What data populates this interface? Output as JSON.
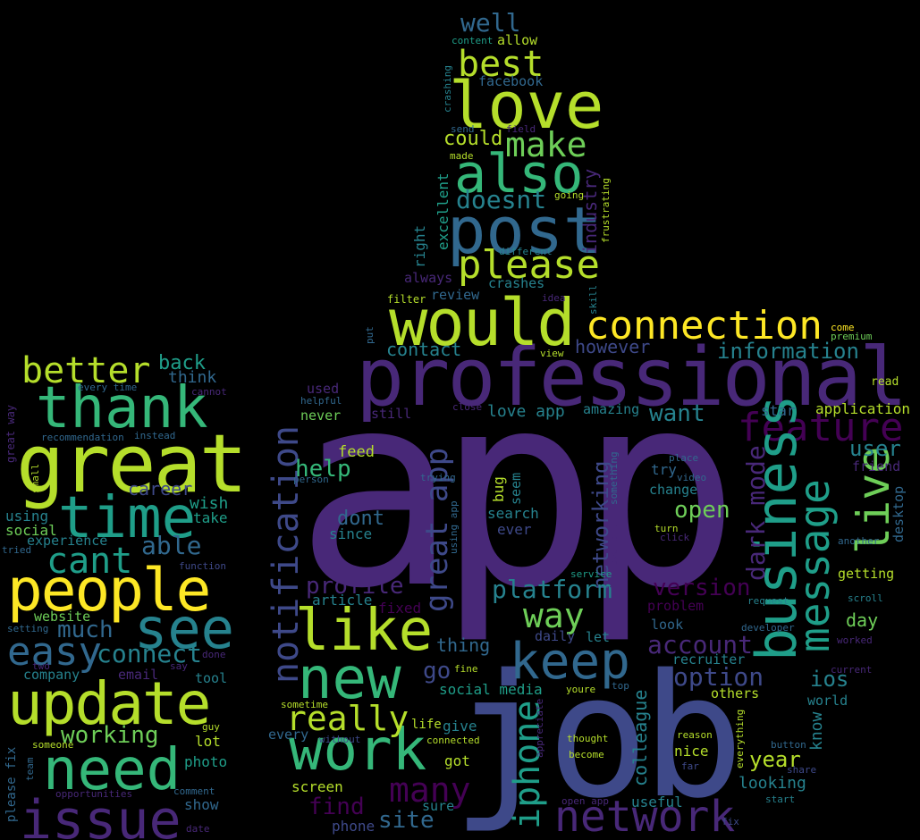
{
  "palette": {
    "background": "#000000",
    "p1": "#440154",
    "p2": "#482878",
    "p3": "#3e4989",
    "p4": "#31688e",
    "p5": "#26828e",
    "p6": "#1f9e89",
    "p7": "#35b779",
    "p8": "#6ece58",
    "p9": "#b5de2b",
    "p10": "#fde725"
  },
  "words": [
    {
      "id": "app",
      "text": "app"
    },
    {
      "id": "job",
      "text": "job"
    },
    {
      "id": "professional",
      "text": "professional"
    },
    {
      "id": "would",
      "text": "would"
    },
    {
      "id": "post",
      "text": "post"
    },
    {
      "id": "love",
      "text": "love"
    },
    {
      "id": "also",
      "text": "also"
    },
    {
      "id": "best",
      "text": "best"
    },
    {
      "id": "well",
      "text": "well"
    },
    {
      "id": "make",
      "text": "make"
    },
    {
      "id": "please",
      "text": "please"
    },
    {
      "id": "doesnt",
      "text": "doesnt"
    },
    {
      "id": "could",
      "text": "could"
    },
    {
      "id": "connection",
      "text": "connection"
    },
    {
      "id": "information",
      "text": "information"
    },
    {
      "id": "feature",
      "text": "feature"
    },
    {
      "id": "business",
      "text": "business"
    },
    {
      "id": "message",
      "text": "message"
    },
    {
      "id": "live",
      "text": "live"
    },
    {
      "id": "user",
      "text": "user"
    },
    {
      "id": "like",
      "text": "like"
    },
    {
      "id": "new",
      "text": "new"
    },
    {
      "id": "work",
      "text": "work"
    },
    {
      "id": "really",
      "text": "really"
    },
    {
      "id": "keep",
      "text": "keep"
    },
    {
      "id": "iphone",
      "text": "iphone"
    },
    {
      "id": "network",
      "text": "network"
    },
    {
      "id": "many",
      "text": "many"
    },
    {
      "id": "notification",
      "text": "notification"
    },
    {
      "id": "great_app",
      "text": "great app"
    },
    {
      "id": "networking",
      "text": "networking"
    },
    {
      "id": "platform",
      "text": "platform"
    },
    {
      "id": "way",
      "text": "way"
    },
    {
      "id": "profile",
      "text": "profile"
    },
    {
      "id": "version",
      "text": "version"
    },
    {
      "id": "open",
      "text": "open"
    },
    {
      "id": "dark_mode",
      "text": "dark mode"
    },
    {
      "id": "want",
      "text": "want"
    },
    {
      "id": "account",
      "text": "account"
    },
    {
      "id": "option",
      "text": "option"
    },
    {
      "id": "ios",
      "text": "ios"
    },
    {
      "id": "thank",
      "text": "thank"
    },
    {
      "id": "great",
      "text": "great"
    },
    {
      "id": "better",
      "text": "better"
    },
    {
      "id": "time",
      "text": "time"
    },
    {
      "id": "people",
      "text": "people"
    },
    {
      "id": "see",
      "text": "see"
    },
    {
      "id": "cant",
      "text": "cant"
    },
    {
      "id": "easy",
      "text": "easy"
    },
    {
      "id": "update",
      "text": "update"
    },
    {
      "id": "need",
      "text": "need"
    },
    {
      "id": "issue",
      "text": "issue"
    },
    {
      "id": "working",
      "text": "working"
    },
    {
      "id": "connect",
      "text": "connect"
    },
    {
      "id": "able",
      "text": "able"
    },
    {
      "id": "much",
      "text": "much"
    },
    {
      "id": "back",
      "text": "back"
    },
    {
      "id": "think",
      "text": "think"
    },
    {
      "id": "career",
      "text": "career"
    },
    {
      "id": "wish",
      "text": "wish"
    },
    {
      "id": "take",
      "text": "take"
    },
    {
      "id": "using",
      "text": "using"
    },
    {
      "id": "social",
      "text": "social"
    },
    {
      "id": "experience",
      "text": "experience"
    },
    {
      "id": "website",
      "text": "website"
    },
    {
      "id": "company",
      "text": "company"
    },
    {
      "id": "email",
      "text": "email"
    },
    {
      "id": "tool",
      "text": "tool"
    },
    {
      "id": "lot",
      "text": "lot"
    },
    {
      "id": "photo",
      "text": "photo"
    },
    {
      "id": "show",
      "text": "show"
    },
    {
      "id": "date",
      "text": "date"
    },
    {
      "id": "comment",
      "text": "comment"
    },
    {
      "id": "opportunities",
      "text": "opportunities"
    },
    {
      "id": "someone",
      "text": "someone"
    },
    {
      "id": "please_fix",
      "text": "please fix"
    },
    {
      "id": "team",
      "text": "team"
    },
    {
      "id": "every_time",
      "text": "every time"
    },
    {
      "id": "cannot",
      "text": "cannot"
    },
    {
      "id": "recommendation",
      "text": "recommendation"
    },
    {
      "id": "instead",
      "text": "instead"
    },
    {
      "id": "great_way",
      "text": "great way"
    },
    {
      "id": "small",
      "text": "small"
    },
    {
      "id": "tried",
      "text": "tried"
    },
    {
      "id": "function",
      "text": "function"
    },
    {
      "id": "setting",
      "text": "setting"
    },
    {
      "id": "two",
      "text": "two"
    },
    {
      "id": "say",
      "text": "say"
    },
    {
      "id": "done",
      "text": "done"
    },
    {
      "id": "guy",
      "text": "guy"
    },
    {
      "id": "help",
      "text": "help"
    },
    {
      "id": "dont",
      "text": "dont"
    },
    {
      "id": "since",
      "text": "since"
    },
    {
      "id": "feed",
      "text": "feed"
    },
    {
      "id": "never",
      "text": "never"
    },
    {
      "id": "used",
      "text": "used"
    },
    {
      "id": "still",
      "text": "still"
    },
    {
      "id": "helpful",
      "text": "helpful"
    },
    {
      "id": "article",
      "text": "article"
    },
    {
      "id": "fixed",
      "text": "fixed"
    },
    {
      "id": "thing",
      "text": "thing"
    },
    {
      "id": "go",
      "text": "go"
    },
    {
      "id": "social_media",
      "text": "social media"
    },
    {
      "id": "give",
      "text": "give"
    },
    {
      "id": "life",
      "text": "life"
    },
    {
      "id": "got",
      "text": "got"
    },
    {
      "id": "sure",
      "text": "sure"
    },
    {
      "id": "site",
      "text": "site"
    },
    {
      "id": "phone",
      "text": "phone"
    },
    {
      "id": "find",
      "text": "find"
    },
    {
      "id": "screen",
      "text": "screen"
    },
    {
      "id": "every",
      "text": "every"
    },
    {
      "id": "without",
      "text": "without"
    },
    {
      "id": "sometime",
      "text": "sometime"
    },
    {
      "id": "connected",
      "text": "connected"
    },
    {
      "id": "contact",
      "text": "contact"
    },
    {
      "id": "however",
      "text": "however"
    },
    {
      "id": "review",
      "text": "review"
    },
    {
      "id": "crashes",
      "text": "crashes"
    },
    {
      "id": "filter",
      "text": "filter"
    },
    {
      "id": "always",
      "text": "always"
    },
    {
      "id": "right",
      "text": "right"
    },
    {
      "id": "excellent",
      "text": "excellent"
    },
    {
      "id": "industry",
      "text": "industry"
    },
    {
      "id": "frustrating",
      "text": "frustrating"
    },
    {
      "id": "going",
      "text": "going"
    },
    {
      "id": "different",
      "text": "different"
    },
    {
      "id": "skill",
      "text": "skill"
    },
    {
      "id": "idea",
      "text": "idea"
    },
    {
      "id": "made",
      "text": "made"
    },
    {
      "id": "send",
      "text": "send"
    },
    {
      "id": "field",
      "text": "field"
    },
    {
      "id": "crashing",
      "text": "crashing"
    },
    {
      "id": "facebook",
      "text": "facebook"
    },
    {
      "id": "content",
      "text": "content"
    },
    {
      "id": "allow",
      "text": "allow"
    },
    {
      "id": "put",
      "text": "put"
    },
    {
      "id": "view",
      "text": "view"
    },
    {
      "id": "come",
      "text": "come"
    },
    {
      "id": "premium",
      "text": "premium"
    },
    {
      "id": "read",
      "text": "read"
    },
    {
      "id": "application",
      "text": "application"
    },
    {
      "id": "star",
      "text": "star"
    },
    {
      "id": "love_app",
      "text": "love app"
    },
    {
      "id": "amazing",
      "text": "amazing"
    },
    {
      "id": "close",
      "text": "close"
    },
    {
      "id": "bug",
      "text": "bug"
    },
    {
      "id": "seem",
      "text": "seem"
    },
    {
      "id": "search",
      "text": "search"
    },
    {
      "id": "ever",
      "text": "ever"
    },
    {
      "id": "trying",
      "text": "trying"
    },
    {
      "id": "person",
      "text": "person"
    },
    {
      "id": "using_app",
      "text": "using app"
    },
    {
      "id": "improvement",
      "text": "improvement"
    },
    {
      "id": "something",
      "text": "something"
    },
    {
      "id": "place",
      "text": "place"
    },
    {
      "id": "try",
      "text": "try"
    },
    {
      "id": "video",
      "text": "video"
    },
    {
      "id": "change",
      "text": "change"
    },
    {
      "id": "turn",
      "text": "turn"
    },
    {
      "id": "click",
      "text": "click"
    },
    {
      "id": "desktop",
      "text": "desktop"
    },
    {
      "id": "friend",
      "text": "friend"
    },
    {
      "id": "another",
      "text": "another"
    },
    {
      "id": "getting",
      "text": "getting"
    },
    {
      "id": "scroll",
      "text": "scroll"
    },
    {
      "id": "service",
      "text": "service"
    },
    {
      "id": "problem",
      "text": "problem"
    },
    {
      "id": "day",
      "text": "day"
    },
    {
      "id": "request",
      "text": "request"
    },
    {
      "id": "look",
      "text": "look"
    },
    {
      "id": "developer",
      "text": "developer"
    },
    {
      "id": "worked",
      "text": "worked"
    },
    {
      "id": "daily",
      "text": "daily"
    },
    {
      "id": "let",
      "text": "let"
    },
    {
      "id": "recruiter",
      "text": "recruiter"
    },
    {
      "id": "current",
      "text": "current"
    },
    {
      "id": "others",
      "text": "others"
    },
    {
      "id": "world",
      "text": "world"
    },
    {
      "id": "fine",
      "text": "fine"
    },
    {
      "id": "youre",
      "text": "youre"
    },
    {
      "id": "top",
      "text": "top"
    },
    {
      "id": "appreciate",
      "text": "appreciate"
    },
    {
      "id": "colleague",
      "text": "colleague"
    },
    {
      "id": "everything",
      "text": "everything"
    },
    {
      "id": "reason",
      "text": "reason"
    },
    {
      "id": "nice",
      "text": "nice"
    },
    {
      "id": "button",
      "text": "button"
    },
    {
      "id": "know",
      "text": "know"
    },
    {
      "id": "year",
      "text": "year"
    },
    {
      "id": "far",
      "text": "far"
    },
    {
      "id": "share",
      "text": "share"
    },
    {
      "id": "looking",
      "text": "looking"
    },
    {
      "id": "thought",
      "text": "thought"
    },
    {
      "id": "become",
      "text": "become"
    },
    {
      "id": "start",
      "text": "start"
    },
    {
      "id": "useful",
      "text": "useful"
    },
    {
      "id": "open_app",
      "text": "open app"
    },
    {
      "id": "fix",
      "text": "fix"
    }
  ]
}
